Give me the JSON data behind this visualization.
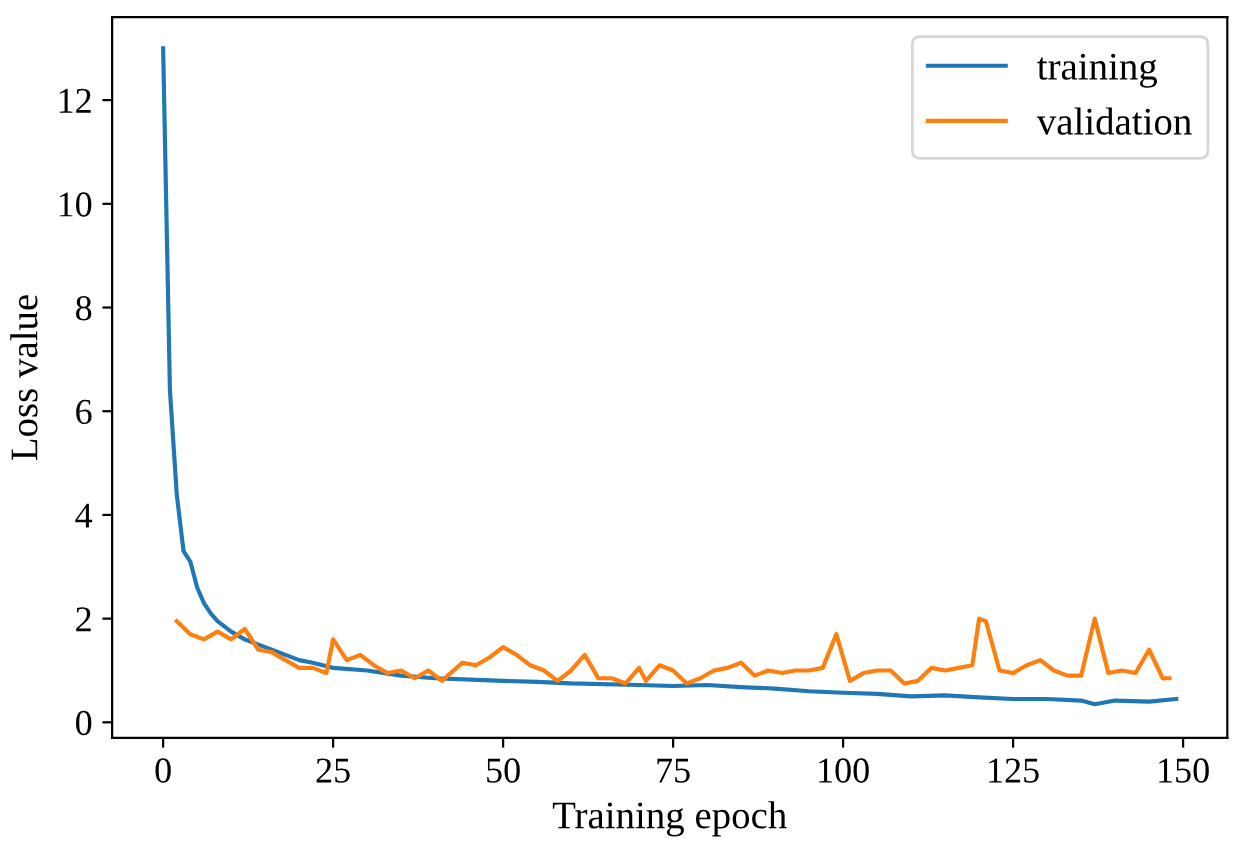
{
  "chart_data": {
    "type": "line",
    "xlabel": "Training epoch",
    "ylabel": "Loss value",
    "xlim": [
      -7.5,
      156.5
    ],
    "ylim": [
      -0.3,
      13.6
    ],
    "xticks": [
      0,
      25,
      50,
      75,
      100,
      125,
      150
    ],
    "yticks": [
      0,
      2,
      4,
      6,
      8,
      10,
      12
    ],
    "grid": false,
    "legend": "top right",
    "series": [
      {
        "name": "training",
        "color": "#1f77b4",
        "x": [
          0,
          1,
          2,
          3,
          4,
          5,
          6,
          7,
          8,
          10,
          12,
          15,
          18,
          20,
          22,
          25,
          30,
          35,
          40,
          50,
          55,
          60,
          70,
          75,
          80,
          85,
          90,
          95,
          100,
          105,
          110,
          115,
          120,
          125,
          130,
          135,
          137,
          140,
          145,
          149
        ],
        "values": [
          13,
          6.4,
          4.4,
          3.3,
          3.1,
          2.6,
          2.3,
          2.1,
          1.95,
          1.75,
          1.6,
          1.45,
          1.3,
          1.2,
          1.15,
          1.05,
          1.0,
          0.9,
          0.85,
          0.8,
          0.78,
          0.75,
          0.72,
          0.7,
          0.72,
          0.68,
          0.65,
          0.6,
          0.57,
          0.55,
          0.5,
          0.52,
          0.48,
          0.45,
          0.45,
          0.42,
          0.35,
          0.42,
          0.4,
          0.45
        ]
      },
      {
        "name": "validation",
        "color": "#ff7f0e",
        "x": [
          2,
          4,
          6,
          8,
          10,
          12,
          14,
          16,
          18,
          20,
          22,
          24,
          25,
          27,
          29,
          31,
          33,
          35,
          37,
          39,
          41,
          44,
          46,
          48,
          50,
          52,
          54,
          56,
          58,
          60,
          62,
          64,
          66,
          68,
          70,
          71,
          73,
          75,
          77,
          79,
          81,
          83,
          85,
          87,
          89,
          91,
          93,
          95,
          97,
          99,
          101,
          103,
          105,
          107,
          109,
          111,
          113,
          115,
          117,
          119,
          120,
          121,
          123,
          125,
          127,
          129,
          131,
          133,
          135,
          137,
          139,
          141,
          143,
          145,
          147,
          148
        ],
        "values": [
          1.95,
          1.7,
          1.6,
          1.75,
          1.6,
          1.8,
          1.4,
          1.35,
          1.2,
          1.05,
          1.05,
          0.95,
          1.6,
          1.2,
          1.3,
          1.1,
          0.95,
          1.0,
          0.85,
          1.0,
          0.8,
          1.15,
          1.1,
          1.25,
          1.45,
          1.3,
          1.1,
          1.0,
          0.8,
          1.0,
          1.3,
          0.85,
          0.85,
          0.75,
          1.05,
          0.8,
          1.1,
          1.0,
          0.75,
          0.85,
          1.0,
          1.05,
          1.15,
          0.9,
          1.0,
          0.95,
          1.0,
          1.0,
          1.05,
          1.7,
          0.8,
          0.95,
          1.0,
          1.0,
          0.75,
          0.8,
          1.05,
          1.0,
          1.05,
          1.1,
          2.0,
          1.95,
          1.0,
          0.95,
          1.1,
          1.2,
          1.0,
          0.9,
          0.9,
          2.0,
          0.95,
          1.0,
          0.95,
          1.4,
          0.85,
          0.85
        ]
      }
    ]
  }
}
